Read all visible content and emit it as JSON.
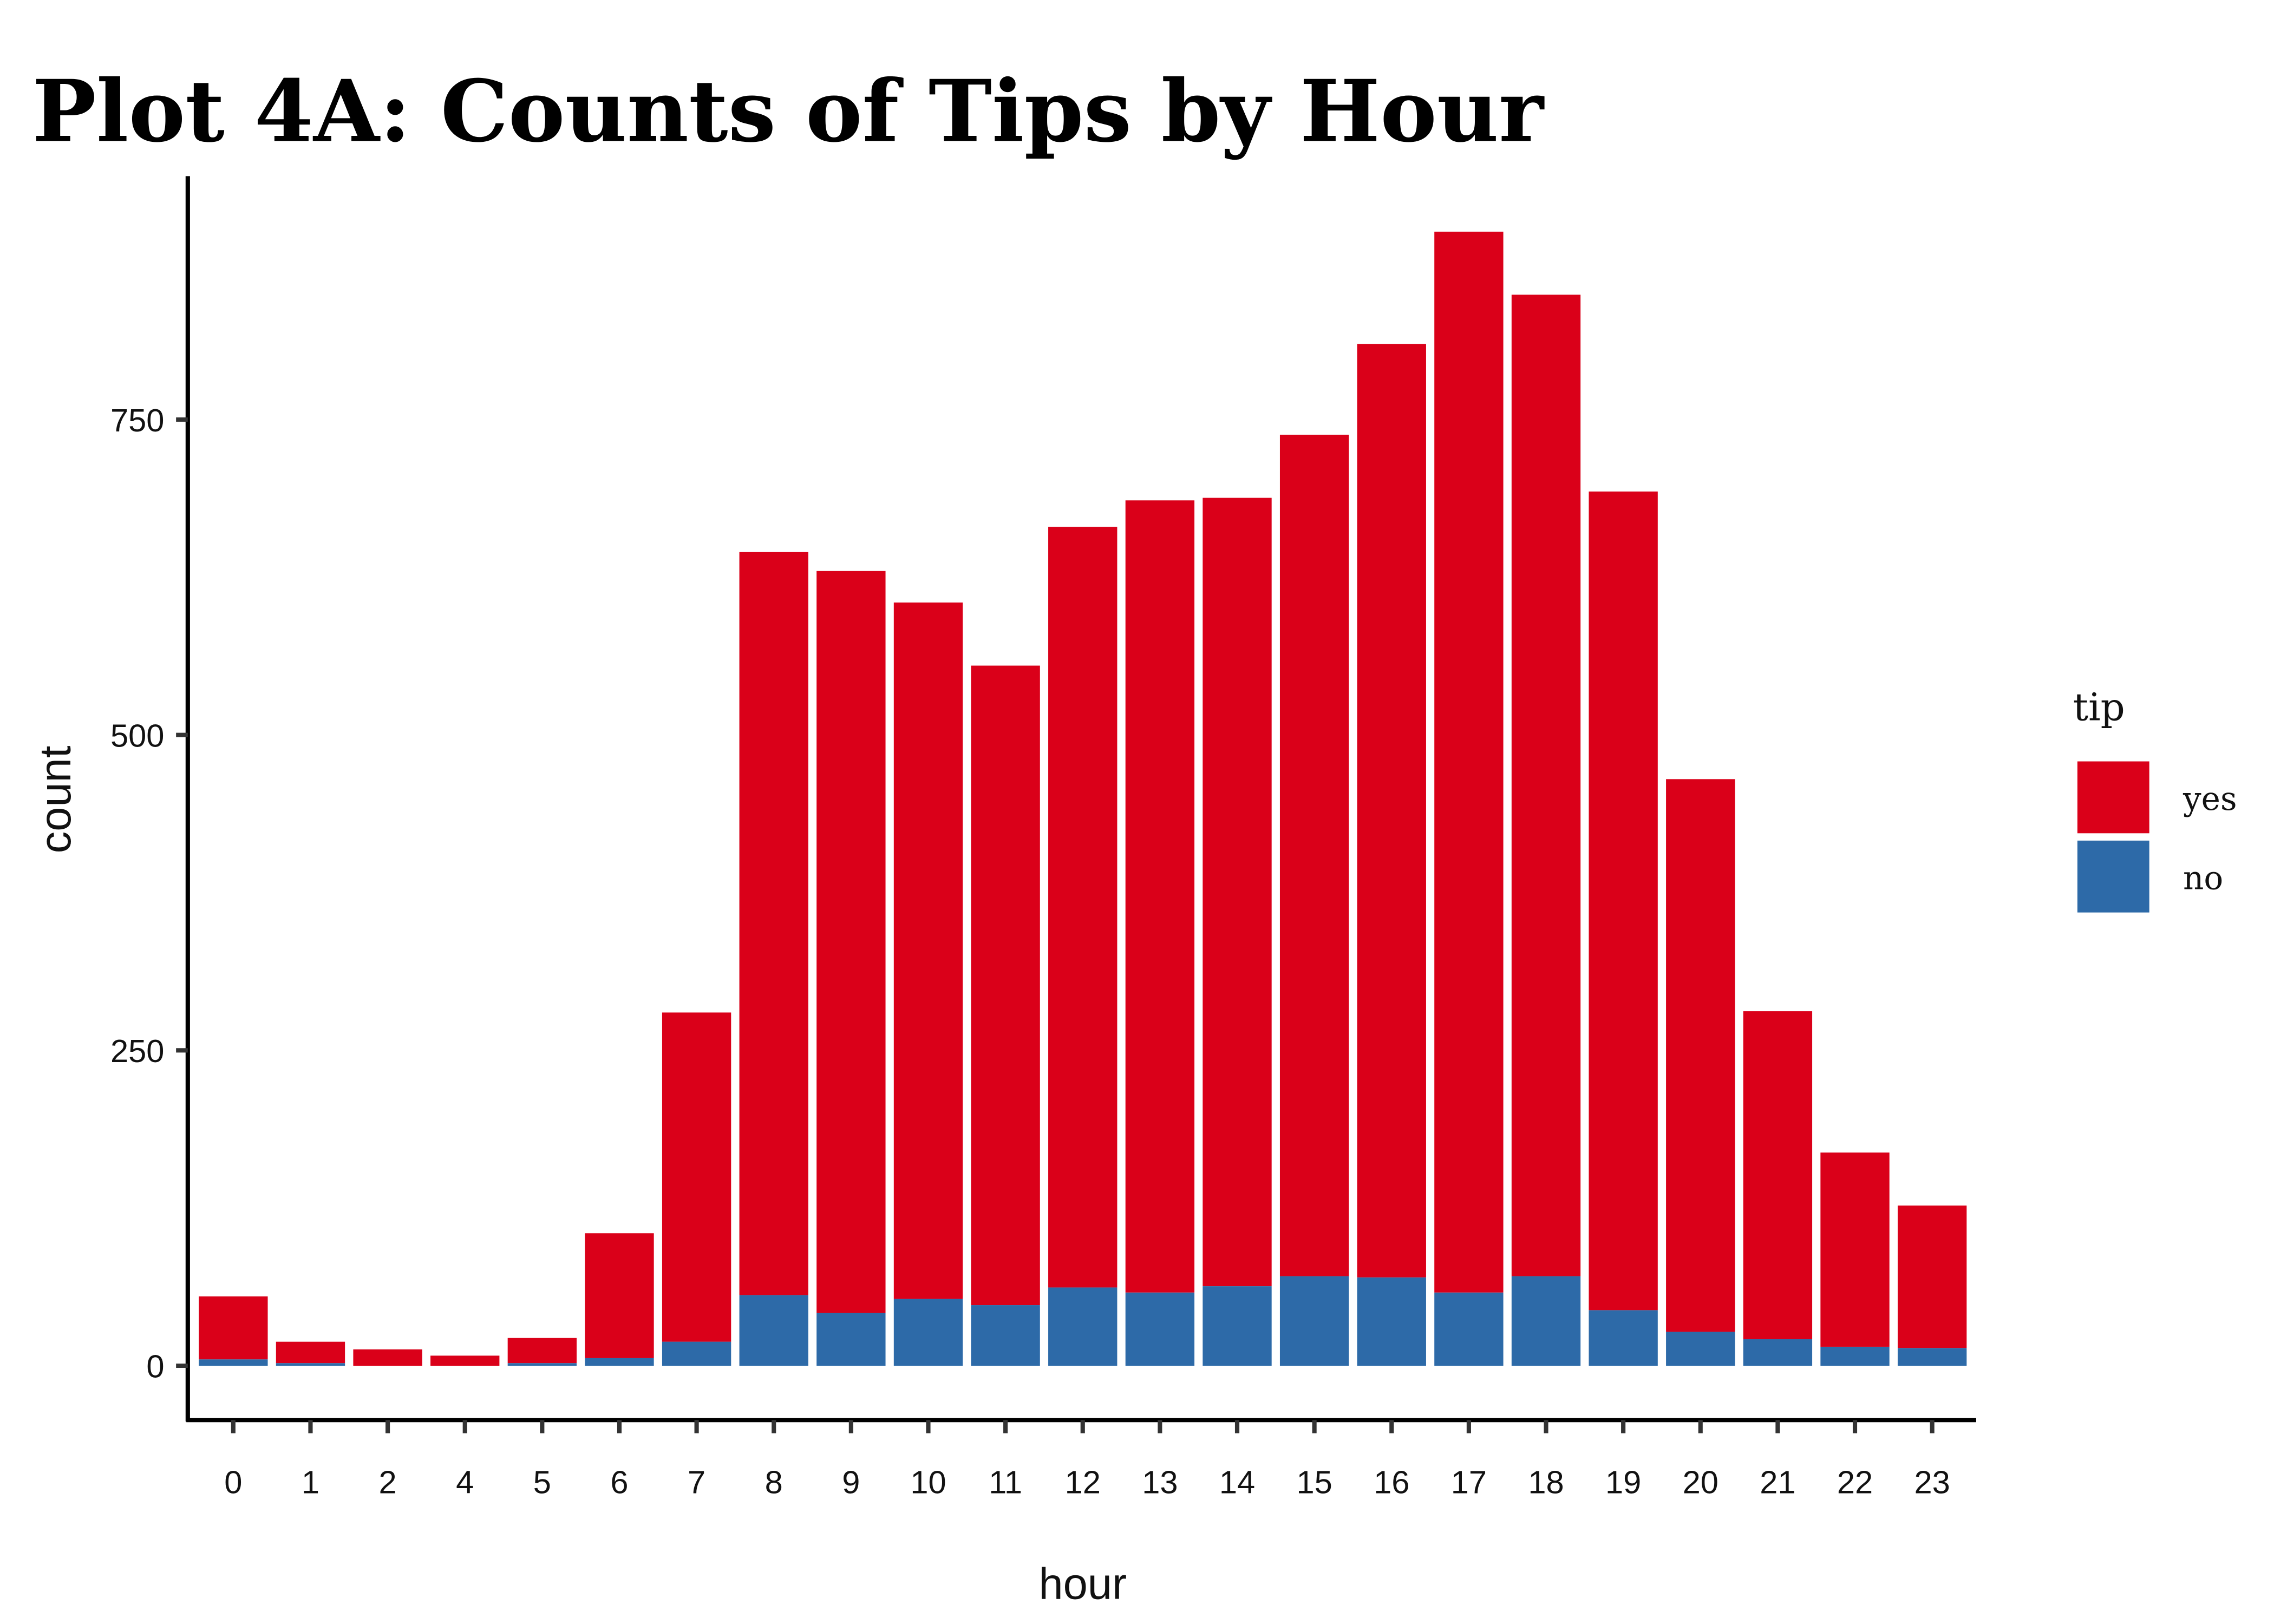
{
  "chart_data": {
    "type": "bar",
    "stacked": true,
    "title": "Plot 4A: Counts of Tips by Hour",
    "xlabel": "hour",
    "ylabel": "count",
    "categories": [
      "0",
      "1",
      "2",
      "4",
      "5",
      "6",
      "7",
      "8",
      "9",
      "10",
      "11",
      "12",
      "13",
      "14",
      "15",
      "16",
      "17",
      "18",
      "19",
      "20",
      "21",
      "22",
      "23"
    ],
    "series": [
      {
        "name": "no",
        "color": "#2D6AA8",
        "values": [
          5,
          2,
          0,
          0,
          2,
          6,
          19,
          56,
          42,
          53,
          48,
          62,
          58,
          63,
          71,
          70,
          58,
          71,
          44,
          27,
          21,
          15,
          14
        ]
      },
      {
        "name": "yes",
        "color": "#DA0019",
        "values": [
          50,
          17,
          13,
          8,
          20,
          99,
          261,
          589,
          588,
          552,
          507,
          603,
          628,
          625,
          667,
          740,
          841,
          778,
          649,
          438,
          260,
          154,
          113
        ]
      }
    ],
    "yticks": [
      "0",
      "250",
      "500",
      "750"
    ],
    "ylim": [
      -45,
      945
    ],
    "legend": {
      "title": "tip",
      "position": "right",
      "items": [
        "yes",
        "no"
      ]
    },
    "grid": false
  }
}
